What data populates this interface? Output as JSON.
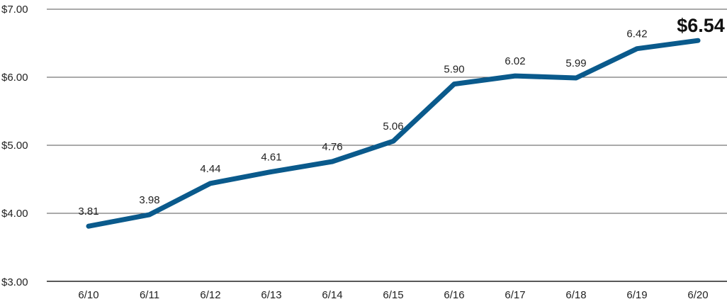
{
  "chart_data": {
    "type": "line",
    "title": "",
    "xlabel": "",
    "ylabel": "",
    "categories": [
      "6/10",
      "6/11",
      "6/12",
      "6/13",
      "6/14",
      "6/15",
      "6/16",
      "6/17",
      "6/18",
      "6/19",
      "6/20"
    ],
    "series": [
      {
        "values": [
          3.81,
          3.98,
          4.44,
          4.61,
          4.76,
          5.06,
          5.9,
          6.02,
          5.99,
          6.42,
          6.54
        ],
        "data_labels": [
          "3.81",
          "3.98",
          "4.44",
          "4.61",
          "4.76",
          "5.06",
          "5.90",
          "6.02",
          "5.99",
          "6.42",
          "$6.54"
        ]
      }
    ],
    "ylim": [
      3.0,
      7.0
    ],
    "yticks": [
      3.0,
      4.0,
      5.0,
      6.0,
      7.0
    ],
    "ytick_labels": [
      "$3.00",
      "$4.00",
      "$5.00",
      "$6.00",
      "$7.00"
    ],
    "grid": true,
    "legend": "none",
    "line_color": "#0a5a8c",
    "grid_color": "#555555"
  }
}
